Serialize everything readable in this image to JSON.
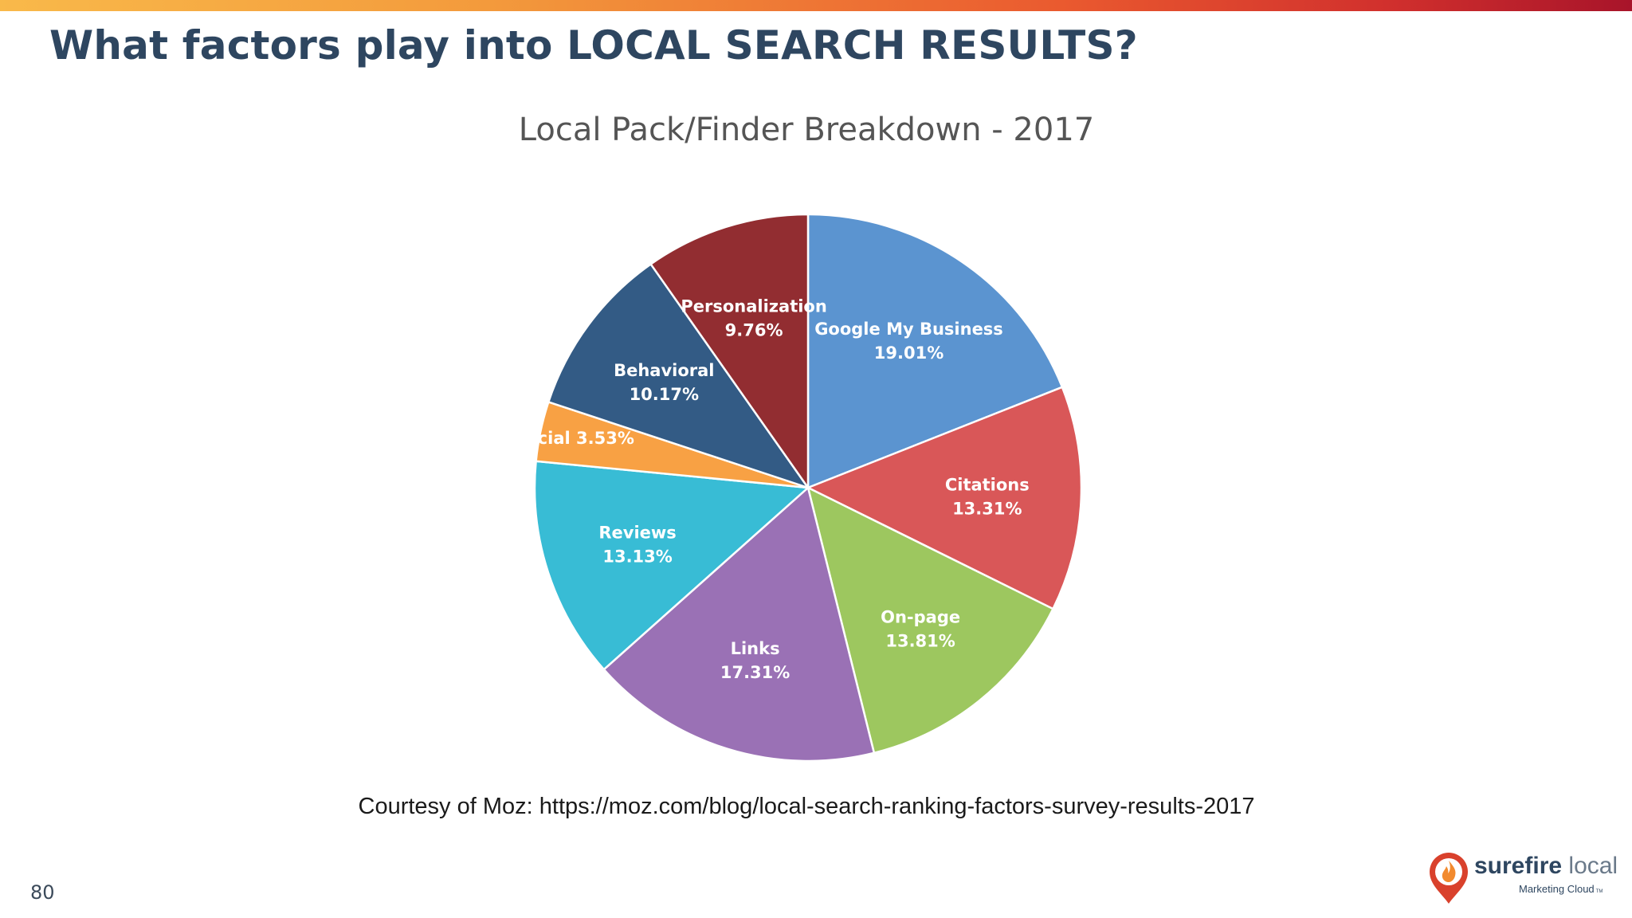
{
  "slide": {
    "title": "What factors play into LOCAL SEARCH RESULTS?",
    "page_number": "80",
    "courtesy": "Courtesy of Moz:  https://moz.com/blog/local-search-ranking-factors-survey-results-2017"
  },
  "logo": {
    "brand_bold": "surefire",
    "brand_light": " local",
    "tagline": "Marketing Cloud",
    "trademark": "TM"
  },
  "chart_data": {
    "type": "pie",
    "title": "Local Pack/Finder Breakdown - 2017",
    "start": "12 o'clock",
    "direction": "clockwise",
    "legend": "none",
    "slices": [
      {
        "label": "Google My Business",
        "value": 19.01,
        "value_label": "19.01%",
        "color": "#5b94d0"
      },
      {
        "label": "Citations",
        "value": 13.31,
        "value_label": "13.31%",
        "color": "#d95758"
      },
      {
        "label": "On-page",
        "value": 13.81,
        "value_label": "13.81%",
        "color": "#9dc75f"
      },
      {
        "label": "Links",
        "value": 17.31,
        "value_label": "17.31%",
        "color": "#9a71b5"
      },
      {
        "label": "Reviews",
        "value": 13.13,
        "value_label": "13.13%",
        "color": "#38bcd5"
      },
      {
        "label": "Social",
        "value": 3.53,
        "value_label": "3.53%",
        "color": "#f8a144"
      },
      {
        "label": "Behavioral",
        "value": 10.17,
        "value_label": "10.17%",
        "color": "#335b85"
      },
      {
        "label": "Personalization",
        "value": 9.76,
        "value_label": "9.76%",
        "color": "#922d31"
      }
    ]
  }
}
